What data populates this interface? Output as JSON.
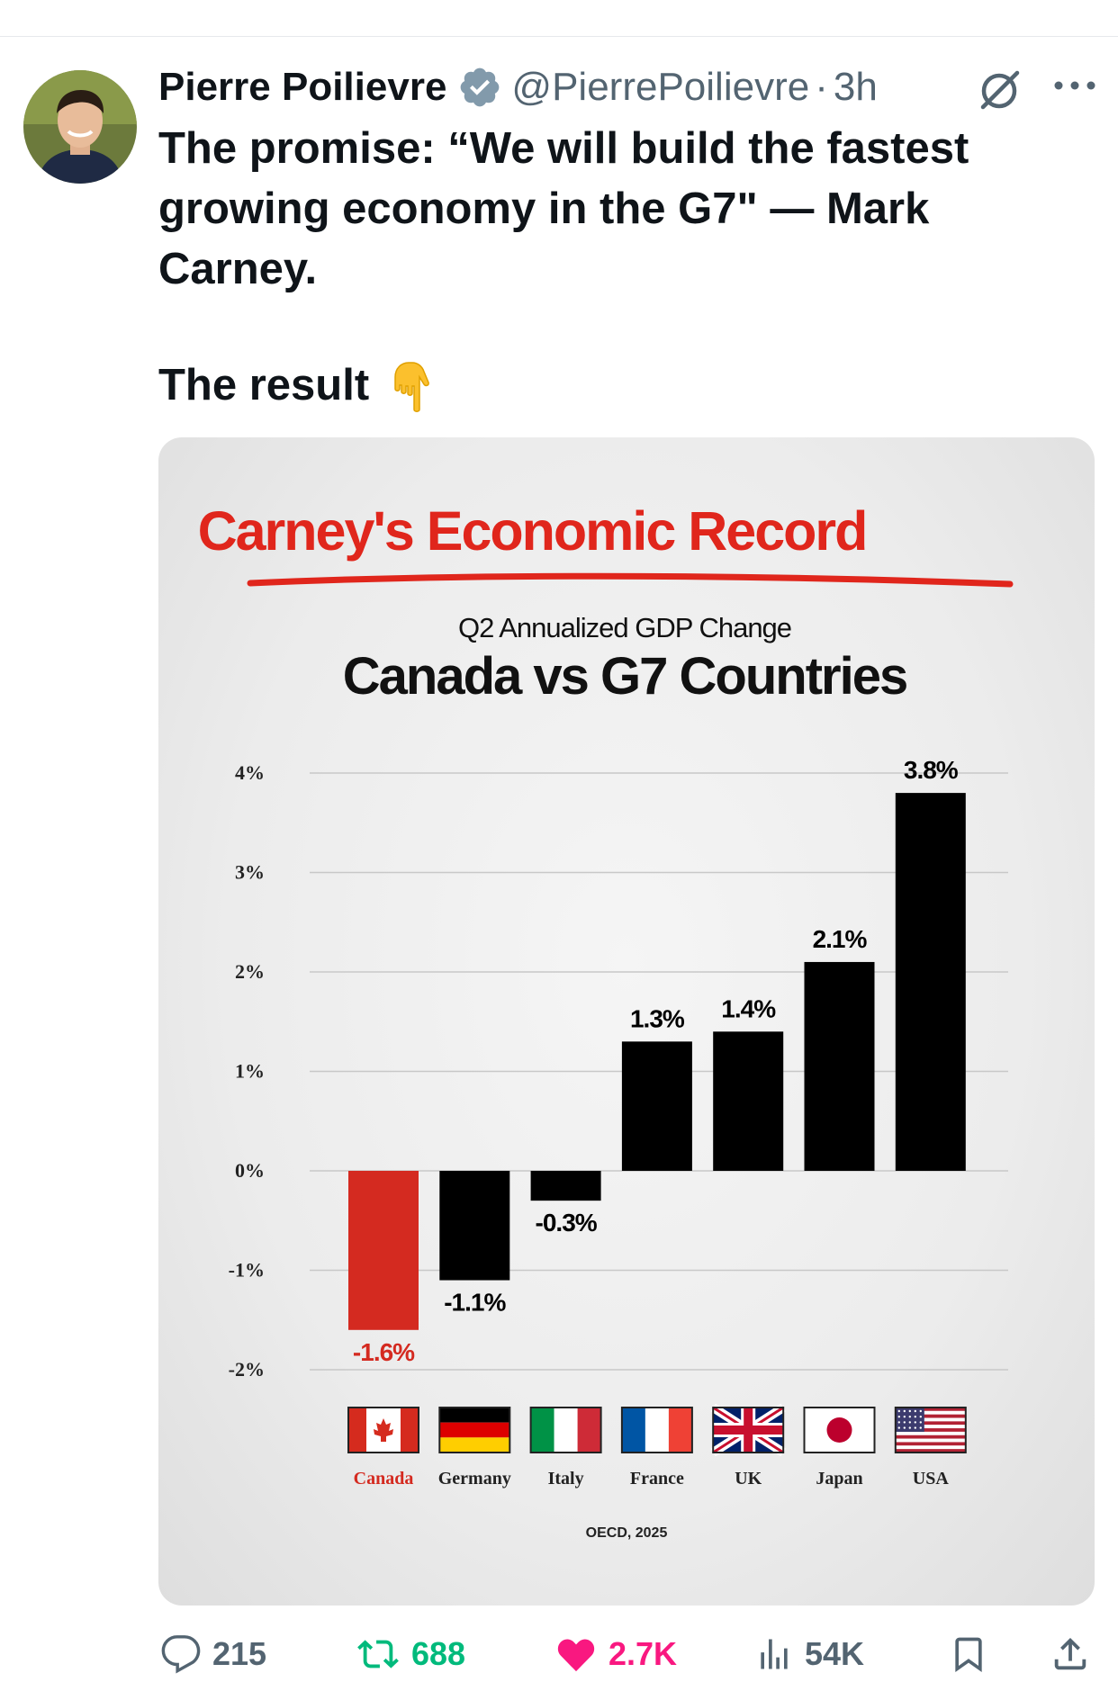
{
  "tweet": {
    "author_name": "Pierre Poilievre",
    "handle": "@PierrePoilievre",
    "time": "3h",
    "text_lines": [
      "The promise: “We will build the fastest",
      "growing economy in the G7\" — Mark",
      "Carney."
    ],
    "result_text": "The result",
    "icons": {
      "avatar": "avatar",
      "verified": "verified-badge-icon",
      "grok": "grok-icon",
      "more": "more-options-icon",
      "emoji": "pointing-down-emoji"
    }
  },
  "actions": {
    "replies": "215",
    "reposts": "688",
    "likes": "2.7K",
    "views": "54K",
    "colors": {
      "muted": "#536471",
      "repost": "#00ba7c",
      "like": "#f91880"
    },
    "icons": [
      "reply-icon",
      "repost-icon",
      "like-icon",
      "views-icon",
      "bookmark-icon",
      "share-icon"
    ]
  },
  "chart_data": {
    "type": "bar",
    "title": "Carney's Economic Record",
    "subtitle": "Q2 Annualized GDP Change",
    "heading": "Canada vs G7 Countries",
    "source": "OECD, 2025",
    "categories": [
      "Canada",
      "Germany",
      "Italy",
      "France",
      "UK",
      "Japan",
      "USA"
    ],
    "values": [
      -1.6,
      -1.1,
      -0.3,
      1.3,
      1.4,
      2.1,
      3.8
    ],
    "value_labels": [
      "-1.6%",
      "-1.1%",
      "-0.3%",
      "1.3%",
      "1.4%",
      "2.1%",
      "3.8%"
    ],
    "y_ticks": [
      "4%",
      "3%",
      "2%",
      "1%",
      "0%",
      "-1%",
      "-2%"
    ],
    "y_tick_values": [
      4,
      3,
      2,
      1,
      0,
      -1,
      -2
    ],
    "ylim": [
      -2,
      4
    ],
    "grid": true,
    "colors": {
      "highlight": "#d42a20",
      "bar": "#000000",
      "title": "#e0261c"
    },
    "flags": [
      "canada-flag",
      "germany-flag",
      "italy-flag",
      "france-flag",
      "uk-flag",
      "japan-flag",
      "usa-flag"
    ]
  }
}
